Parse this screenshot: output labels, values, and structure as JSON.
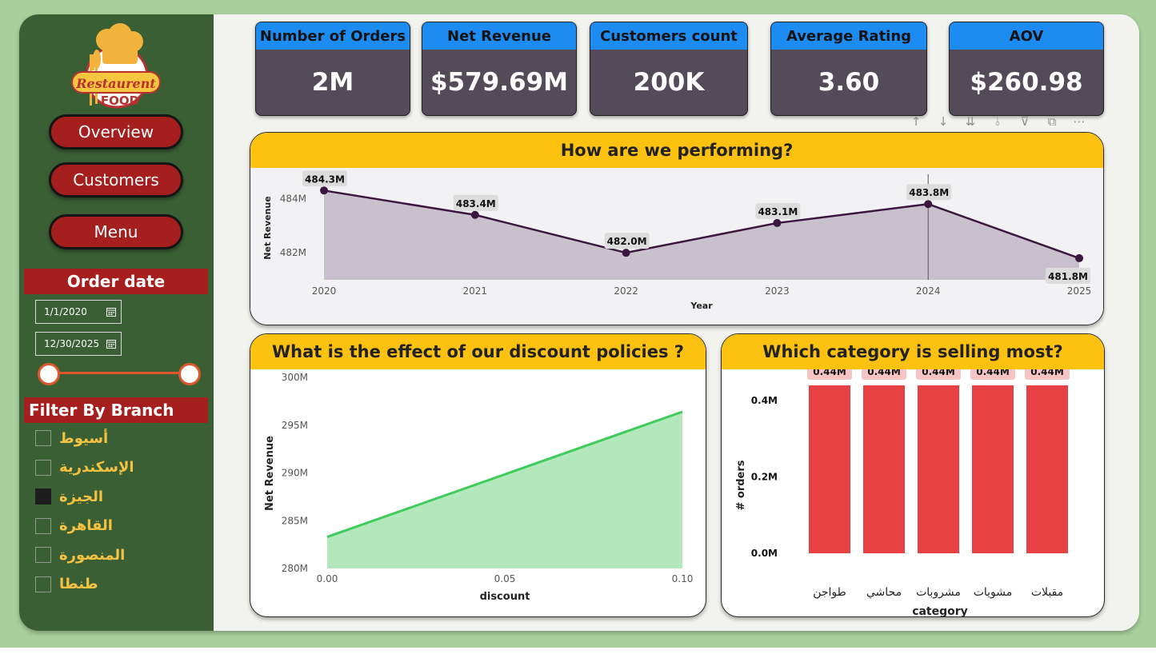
{
  "sidebar": {
    "logo": {
      "text_top": "Restaurent",
      "text_bottom": "FOOD"
    },
    "nav": [
      {
        "label": "Overview"
      },
      {
        "label": "Customers"
      },
      {
        "label": "Menu"
      }
    ],
    "order_date": {
      "title": "Order date",
      "start": "1/1/2020",
      "end": "12/30/2025",
      "calendar_icon": "calendar-icon",
      "range_fraction": [
        0,
        1
      ]
    },
    "branch_filter": {
      "title": "Filter By Branch",
      "items": [
        {
          "label": "أسيوط",
          "checked": false
        },
        {
          "label": "الإسكندرية",
          "checked": false
        },
        {
          "label": "الجيزة",
          "checked": true
        },
        {
          "label": "القاهرة",
          "checked": false
        },
        {
          "label": "المنصورة",
          "checked": false
        },
        {
          "label": "طنطا",
          "checked": false
        }
      ]
    }
  },
  "kpis": [
    {
      "title": "Number of Orders",
      "value": "2M"
    },
    {
      "title": "Net Revenue",
      "value": "$579.69M"
    },
    {
      "title": "Customers count",
      "value": "200K"
    },
    {
      "title": "Average Rating",
      "value": "3.60"
    },
    {
      "title": "AOV",
      "value": "$260.98"
    }
  ],
  "toolbar": {
    "icons": [
      "arrow-up-icon",
      "arrow-down-icon",
      "double-arrow-down-icon",
      "expand-hierarchy-icon",
      "filter-icon",
      "focus-mode-icon",
      "more-options-icon"
    ],
    "glyphs": [
      "↑",
      "↓",
      "⇊",
      "⫰",
      "⊽",
      "⧉",
      "⋯"
    ]
  },
  "colors": {
    "sidebar_bg": "#3a5f35",
    "accent_red": "#a51f1f",
    "kpi_header_blue": "#1c8cf2",
    "kpi_body": "#534c58",
    "card_title_yellow": "#fdc10f",
    "line_purple": "#3b1740",
    "area_purple": "#c8c0cc",
    "discount_line_green": "#3ecc5a",
    "discount_area_green": "#b3e8bc",
    "bar_red": "#e84144",
    "branch_label_yellow": "#f5c242"
  },
  "chart_data": [
    {
      "type": "area",
      "title": "How are we performing?",
      "xlabel": "Year",
      "ylabel": "Net Revenue",
      "x": [
        2020,
        2021,
        2022,
        2023,
        2024,
        2025
      ],
      "values": [
        484.3,
        483.4,
        482.0,
        483.1,
        483.8,
        481.8
      ],
      "value_labels": [
        "484.3M",
        "483.4M",
        "482.0M",
        "483.1M",
        "483.8M",
        "481.8M"
      ],
      "y_ticks": [
        482,
        484
      ],
      "y_tick_labels": [
        "482M",
        "484M"
      ],
      "ylim": [
        481.0,
        484.9
      ],
      "highlight_x": 2024
    },
    {
      "type": "area",
      "title": "What is the effect of our discount policies ?",
      "xlabel": "discount",
      "ylabel": "Net Revenue",
      "x": [
        0.0,
        0.1
      ],
      "values": [
        283.3,
        296.4
      ],
      "x_ticks": [
        0.0,
        0.05,
        0.1
      ],
      "x_tick_labels": [
        "0.00",
        "0.05",
        "0.10"
      ],
      "y_ticks": [
        280,
        285,
        290,
        295,
        300
      ],
      "y_tick_labels": [
        "280M",
        "285M",
        "290M",
        "295M",
        "300M"
      ],
      "ylim": [
        280,
        300
      ]
    },
    {
      "type": "bar",
      "title": "Which category is selling most?",
      "xlabel": "category",
      "ylabel": "# orders",
      "categories": [
        "طواجن",
        "محاشي",
        "مشروبات",
        "مشويات",
        "مقبلات"
      ],
      "values": [
        0.44,
        0.44,
        0.44,
        0.44,
        0.44
      ],
      "value_labels": [
        "0.44M",
        "0.44M",
        "0.44M",
        "0.44M",
        "0.44M"
      ],
      "y_ticks": [
        0.0,
        0.2,
        0.4
      ],
      "y_tick_labels": [
        "0.0M",
        "0.2M",
        "0.4M"
      ],
      "ylim": [
        0,
        0.46
      ]
    }
  ]
}
